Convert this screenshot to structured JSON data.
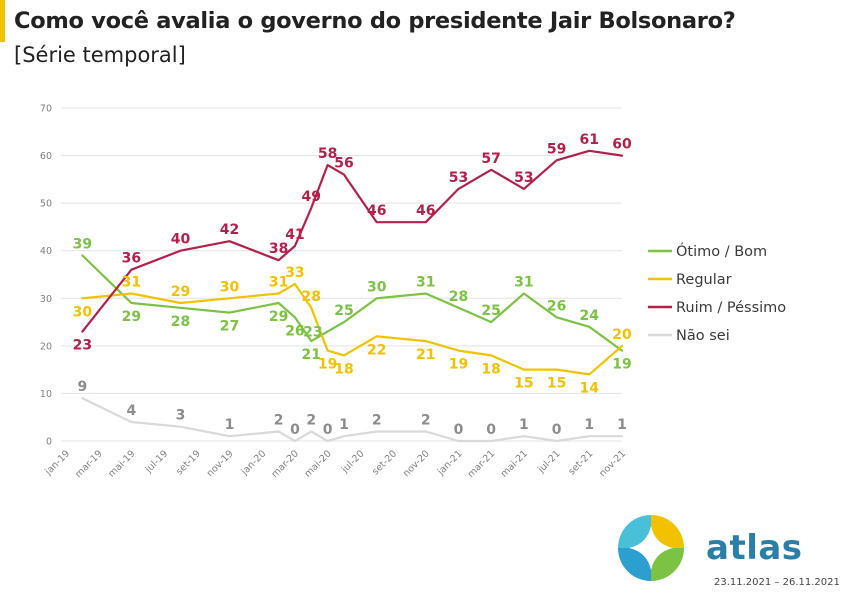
{
  "title": "Como você avalia o governo do presidente Jair Bolsonaro?",
  "subtitle": "[Série temporal]",
  "brand": {
    "name": "atlas",
    "date_range": "23.11.2021 – 26.11.2021"
  },
  "chart_data": {
    "type": "line",
    "ylim": [
      0,
      70
    ],
    "yticks": [
      0,
      10,
      20,
      30,
      40,
      50,
      60,
      70
    ],
    "grid": true,
    "legend_position": "right",
    "xlim": [
      0,
      34
    ],
    "xticks": [
      {
        "label": "jan-19",
        "x": 0
      },
      {
        "label": "mar-19",
        "x": 2
      },
      {
        "label": "mai-19",
        "x": 4
      },
      {
        "label": "jul-19",
        "x": 6
      },
      {
        "label": "set-19",
        "x": 8
      },
      {
        "label": "nov-19",
        "x": 10
      },
      {
        "label": "jan-20",
        "x": 12
      },
      {
        "label": "mar-20",
        "x": 14
      },
      {
        "label": "mai-20",
        "x": 16
      },
      {
        "label": "jul-20",
        "x": 18
      },
      {
        "label": "set-20",
        "x": 20
      },
      {
        "label": "nov-20",
        "x": 22
      },
      {
        "label": "jan-21",
        "x": 24
      },
      {
        "label": "mar-21",
        "x": 26
      },
      {
        "label": "mai-21",
        "x": 28
      },
      {
        "label": "jul-21",
        "x": 30
      },
      {
        "label": "set-21",
        "x": 32
      },
      {
        "label": "nov-21",
        "x": 34
      }
    ],
    "series": [
      {
        "name": "Ótimo / Bom",
        "color": "#7cc243",
        "points": [
          [
            1,
            39
          ],
          [
            4,
            29
          ],
          [
            7,
            28
          ],
          [
            10,
            27
          ],
          [
            13,
            29
          ],
          [
            14,
            26
          ],
          [
            15,
            21
          ],
          [
            16,
            23
          ],
          [
            17,
            25
          ],
          [
            19,
            30
          ],
          [
            22,
            31
          ],
          [
            24,
            28
          ],
          [
            26,
            25
          ],
          [
            28,
            31
          ],
          [
            30,
            26
          ],
          [
            32,
            24
          ],
          [
            34,
            19
          ]
        ],
        "labels": [
          {
            "x": 1,
            "y": 39,
            "text": "39",
            "pos": "above"
          },
          {
            "x": 4,
            "y": 29,
            "text": "29",
            "pos": "below"
          },
          {
            "x": 7,
            "y": 28,
            "text": "28",
            "pos": "below"
          },
          {
            "x": 10,
            "y": 27,
            "text": "27",
            "pos": "below"
          },
          {
            "x": 13,
            "y": 29,
            "text": "29",
            "pos": "below"
          },
          {
            "x": 14,
            "y": 26,
            "text": "26",
            "pos": "below"
          },
          {
            "x": 15,
            "y": 21,
            "text": "21",
            "pos": "below"
          },
          {
            "x": 16,
            "y": 23,
            "text": "23",
            "pos": "left"
          },
          {
            "x": 17,
            "y": 25,
            "text": "25",
            "pos": "above"
          },
          {
            "x": 19,
            "y": 30,
            "text": "30",
            "pos": "above"
          },
          {
            "x": 22,
            "y": 31,
            "text": "31",
            "pos": "above"
          },
          {
            "x": 24,
            "y": 28,
            "text": "28",
            "pos": "above"
          },
          {
            "x": 26,
            "y": 25,
            "text": "25",
            "pos": "above"
          },
          {
            "x": 28,
            "y": 31,
            "text": "31",
            "pos": "above"
          },
          {
            "x": 30,
            "y": 26,
            "text": "26",
            "pos": "above"
          },
          {
            "x": 32,
            "y": 24,
            "text": "24",
            "pos": "above"
          },
          {
            "x": 34,
            "y": 19,
            "text": "19",
            "pos": "below"
          }
        ]
      },
      {
        "name": "Regular",
        "color": "#f2c200",
        "points": [
          [
            1,
            30
          ],
          [
            4,
            31
          ],
          [
            7,
            29
          ],
          [
            10,
            30
          ],
          [
            13,
            31
          ],
          [
            14,
            33
          ],
          [
            15,
            28
          ],
          [
            16,
            19
          ],
          [
            17,
            18
          ],
          [
            19,
            22
          ],
          [
            22,
            21
          ],
          [
            24,
            19
          ],
          [
            26,
            18
          ],
          [
            28,
            15
          ],
          [
            30,
            15
          ],
          [
            32,
            14
          ],
          [
            34,
            20
          ]
        ],
        "labels": [
          {
            "x": 1,
            "y": 30,
            "text": "30",
            "pos": "below"
          },
          {
            "x": 4,
            "y": 31,
            "text": "31",
            "pos": "above"
          },
          {
            "x": 7,
            "y": 29,
            "text": "29",
            "pos": "above"
          },
          {
            "x": 10,
            "y": 30,
            "text": "30",
            "pos": "above"
          },
          {
            "x": 13,
            "y": 31,
            "text": "31",
            "pos": "above"
          },
          {
            "x": 14,
            "y": 33,
            "text": "33",
            "pos": "above"
          },
          {
            "x": 15,
            "y": 28,
            "text": "28",
            "pos": "above"
          },
          {
            "x": 16,
            "y": 19,
            "text": "19",
            "pos": "below"
          },
          {
            "x": 17,
            "y": 18,
            "text": "18",
            "pos": "below"
          },
          {
            "x": 19,
            "y": 22,
            "text": "22",
            "pos": "below"
          },
          {
            "x": 22,
            "y": 21,
            "text": "21",
            "pos": "below"
          },
          {
            "x": 24,
            "y": 19,
            "text": "19",
            "pos": "below"
          },
          {
            "x": 26,
            "y": 18,
            "text": "18",
            "pos": "below"
          },
          {
            "x": 28,
            "y": 15,
            "text": "15",
            "pos": "below"
          },
          {
            "x": 30,
            "y": 15,
            "text": "15",
            "pos": "below"
          },
          {
            "x": 32,
            "y": 14,
            "text": "14",
            "pos": "below"
          },
          {
            "x": 34,
            "y": 20,
            "text": "20",
            "pos": "above"
          }
        ]
      },
      {
        "name": "Ruim / Péssimo",
        "color": "#b3204a",
        "points": [
          [
            1,
            23
          ],
          [
            4,
            36
          ],
          [
            7,
            40
          ],
          [
            10,
            42
          ],
          [
            13,
            38
          ],
          [
            14,
            41
          ],
          [
            15,
            49
          ],
          [
            16,
            58
          ],
          [
            17,
            56
          ],
          [
            19,
            46
          ],
          [
            22,
            46
          ],
          [
            24,
            53
          ],
          [
            26,
            57
          ],
          [
            28,
            53
          ],
          [
            30,
            59
          ],
          [
            32,
            61
          ],
          [
            34,
            60
          ]
        ],
        "labels": [
          {
            "x": 1,
            "y": 23,
            "text": "23",
            "pos": "below"
          },
          {
            "x": 4,
            "y": 36,
            "text": "36",
            "pos": "above"
          },
          {
            "x": 7,
            "y": 40,
            "text": "40",
            "pos": "above"
          },
          {
            "x": 10,
            "y": 42,
            "text": "42",
            "pos": "above"
          },
          {
            "x": 13,
            "y": 38,
            "text": "38",
            "pos": "above"
          },
          {
            "x": 14,
            "y": 41,
            "text": "41",
            "pos": "above"
          },
          {
            "x": 15,
            "y": 49,
            "text": "49",
            "pos": "above"
          },
          {
            "x": 16,
            "y": 58,
            "text": "58",
            "pos": "above"
          },
          {
            "x": 17,
            "y": 56,
            "text": "56",
            "pos": "above"
          },
          {
            "x": 19,
            "y": 46,
            "text": "46",
            "pos": "above"
          },
          {
            "x": 22,
            "y": 46,
            "text": "46",
            "pos": "above"
          },
          {
            "x": 24,
            "y": 53,
            "text": "53",
            "pos": "above"
          },
          {
            "x": 26,
            "y": 57,
            "text": "57",
            "pos": "above"
          },
          {
            "x": 28,
            "y": 53,
            "text": "53",
            "pos": "above"
          },
          {
            "x": 30,
            "y": 59,
            "text": "59",
            "pos": "above"
          },
          {
            "x": 32,
            "y": 61,
            "text": "61",
            "pos": "above"
          },
          {
            "x": 34,
            "y": 60,
            "text": "60",
            "pos": "above"
          }
        ]
      },
      {
        "name": "Não sei",
        "color": "#d9d9d9",
        "label_color": "#8c8c8c",
        "points": [
          [
            1,
            9
          ],
          [
            4,
            4
          ],
          [
            7,
            3
          ],
          [
            10,
            1
          ],
          [
            13,
            2
          ],
          [
            14,
            0
          ],
          [
            15,
            2
          ],
          [
            16,
            0
          ],
          [
            17,
            1
          ],
          [
            19,
            2
          ],
          [
            22,
            2
          ],
          [
            24,
            0
          ],
          [
            26,
            0
          ],
          [
            28,
            1
          ],
          [
            30,
            0
          ],
          [
            32,
            1
          ],
          [
            34,
            1
          ]
        ],
        "labels": [
          {
            "x": 1,
            "y": 9,
            "text": "9",
            "pos": "above"
          },
          {
            "x": 4,
            "y": 4,
            "text": "4",
            "pos": "above"
          },
          {
            "x": 7,
            "y": 3,
            "text": "3",
            "pos": "above"
          },
          {
            "x": 10,
            "y": 1,
            "text": "1",
            "pos": "above"
          },
          {
            "x": 13,
            "y": 2,
            "text": "2",
            "pos": "above"
          },
          {
            "x": 14,
            "y": 0,
            "text": "0",
            "pos": "above"
          },
          {
            "x": 15,
            "y": 2,
            "text": "2",
            "pos": "above"
          },
          {
            "x": 16,
            "y": 0,
            "text": "0",
            "pos": "above"
          },
          {
            "x": 17,
            "y": 1,
            "text": "1",
            "pos": "above"
          },
          {
            "x": 19,
            "y": 2,
            "text": "2",
            "pos": "above"
          },
          {
            "x": 22,
            "y": 2,
            "text": "2",
            "pos": "above"
          },
          {
            "x": 24,
            "y": 0,
            "text": "0",
            "pos": "above"
          },
          {
            "x": 26,
            "y": 0,
            "text": "0",
            "pos": "above"
          },
          {
            "x": 28,
            "y": 1,
            "text": "1",
            "pos": "above"
          },
          {
            "x": 30,
            "y": 0,
            "text": "0",
            "pos": "above"
          },
          {
            "x": 32,
            "y": 1,
            "text": "1",
            "pos": "above"
          },
          {
            "x": 34,
            "y": 1,
            "text": "1",
            "pos": "above"
          }
        ]
      }
    ]
  }
}
